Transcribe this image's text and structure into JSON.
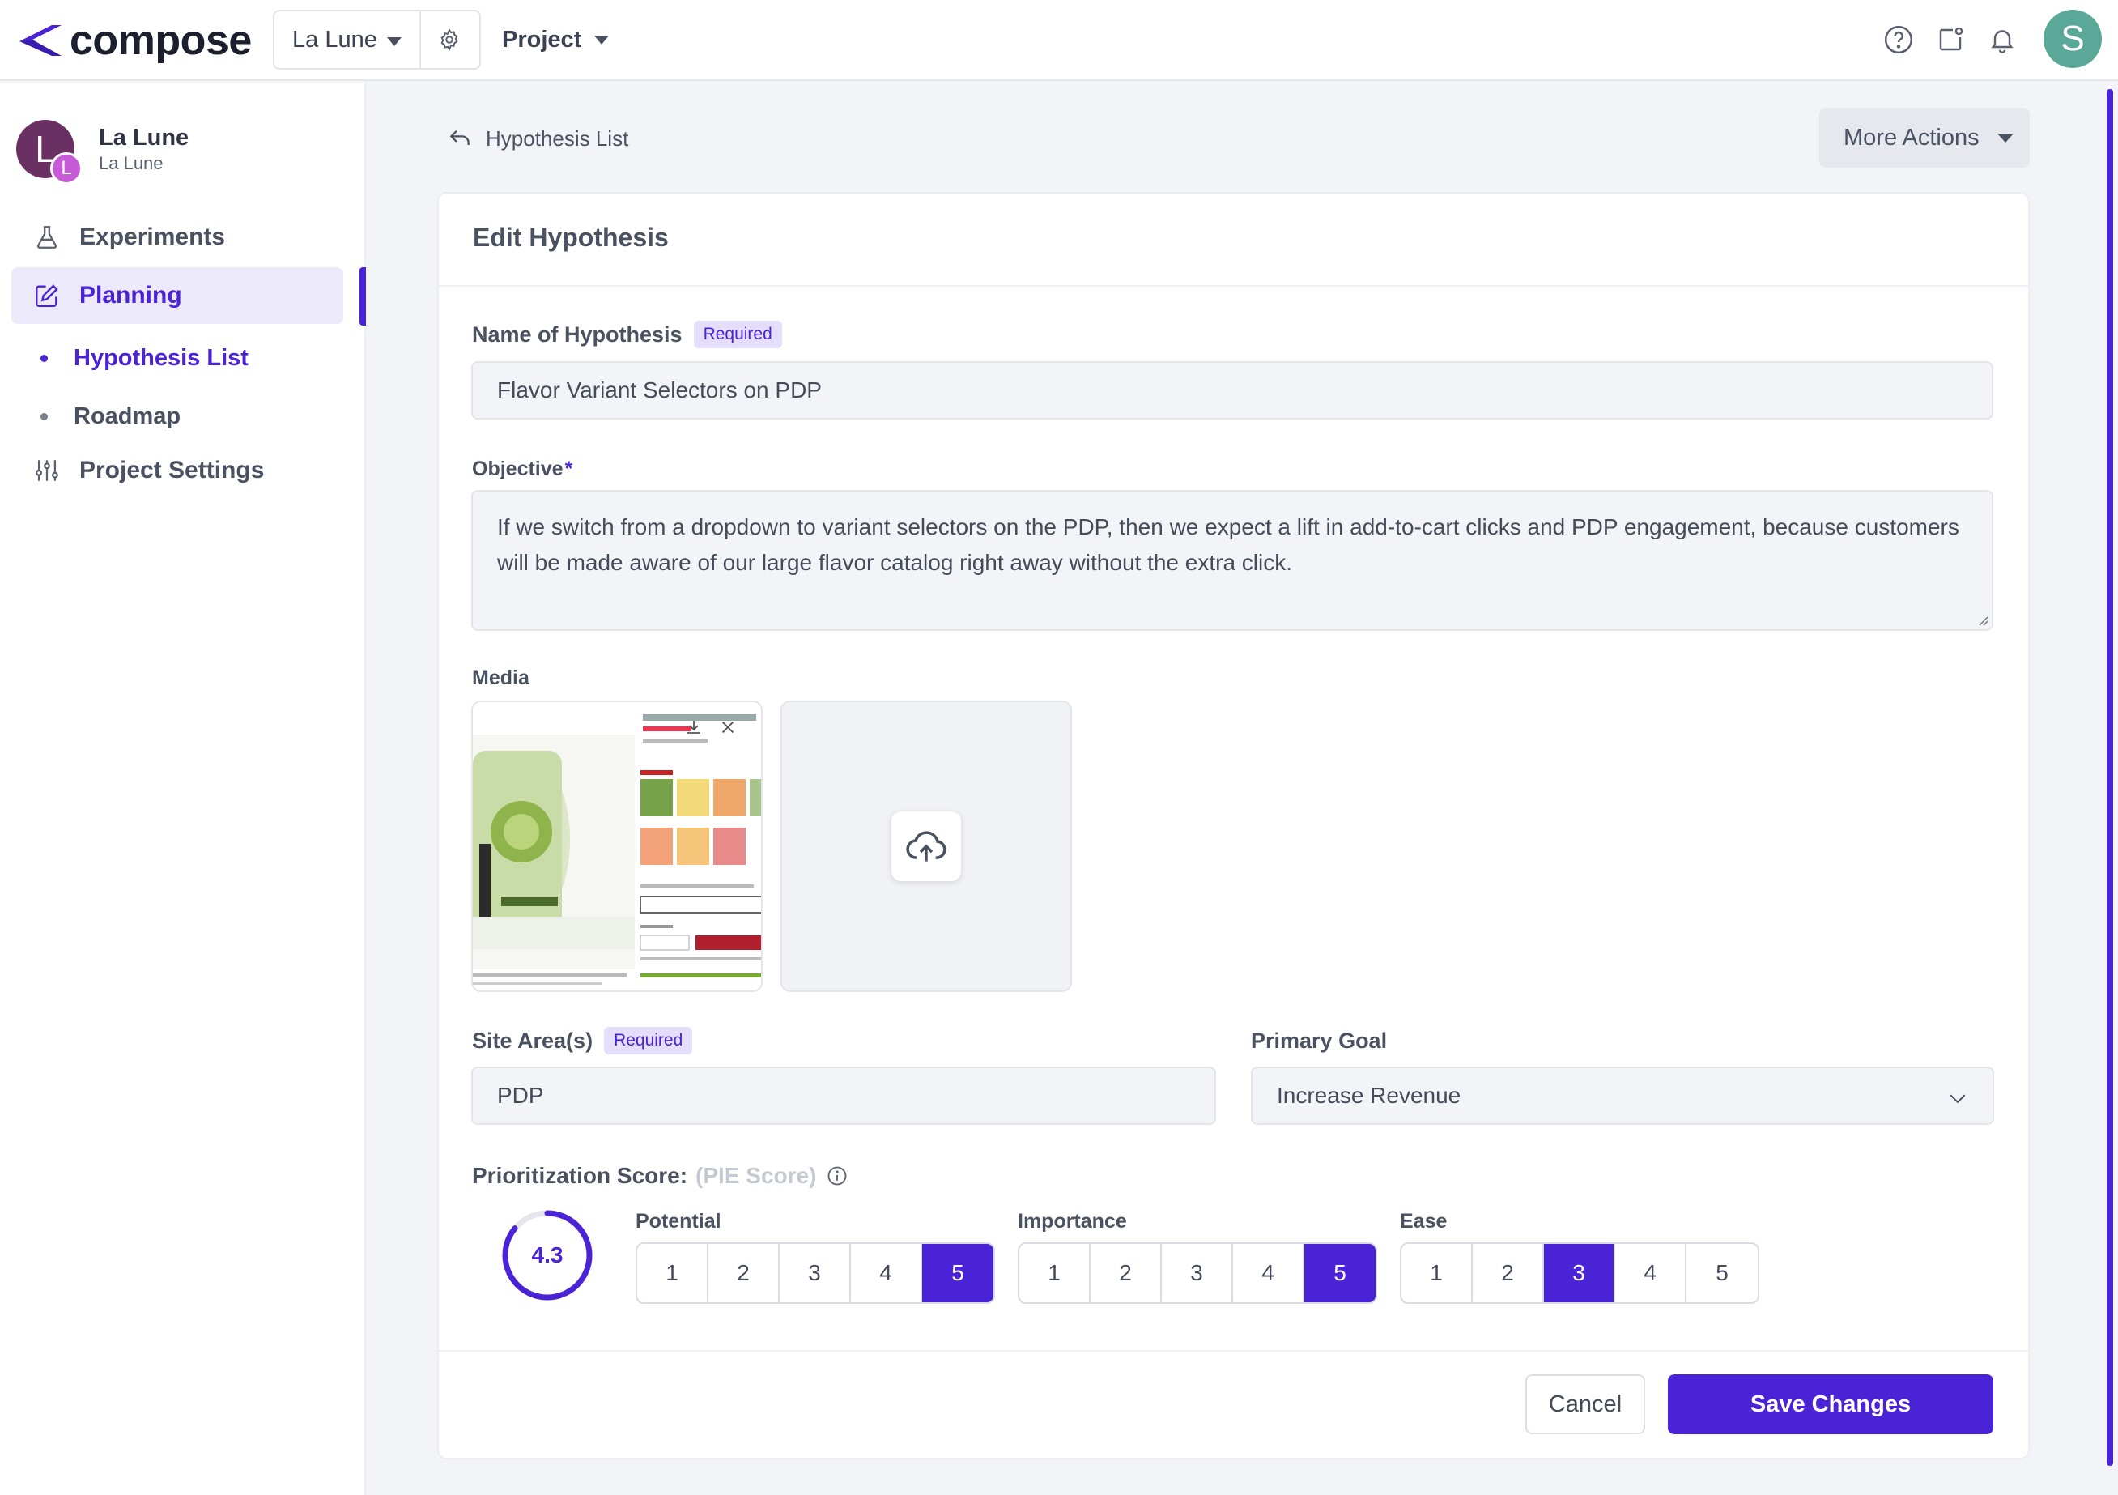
{
  "topbar": {
    "logo_text": "compose",
    "workspace": "La Lune",
    "project_menu": "Project",
    "user_initial": "S"
  },
  "sidebar": {
    "org_name": "La Lune",
    "org_sub": "La Lune",
    "org_initial": "L",
    "org_badge": "L",
    "items": [
      {
        "label": "Experiments",
        "icon": "flask-icon"
      },
      {
        "label": "Planning",
        "icon": "edit-icon"
      },
      {
        "label": "Project Settings",
        "icon": "sliders-icon"
      }
    ],
    "sub_items": [
      {
        "label": "Hypothesis List"
      },
      {
        "label": "Roadmap"
      }
    ]
  },
  "main": {
    "breadcrumb": "Hypothesis List",
    "more_actions": "More Actions",
    "card_title": "Edit Hypothesis",
    "name_label": "Name of Hypothesis",
    "required_badge": "Required",
    "name_value": "Flavor Variant Selectors on PDP",
    "objective_label": "Objective",
    "objective_star": "*",
    "objective_value": "If we switch from a dropdown to variant selectors on the PDP, then we expect a lift in add-to-cart clicks and PDP engagement, because customers will be made aware of our large flavor catalog right away without the extra click.",
    "media_label": "Media",
    "site_area_label": "Site Area(s)",
    "site_area_value": "PDP",
    "primary_goal_label": "Primary Goal",
    "primary_goal_value": "Increase Revenue",
    "score_label": "Prioritization Score:",
    "score_sub": "(PIE Score)",
    "score_value": "4.3",
    "score_fraction": 0.86,
    "ratings": [
      {
        "label": "Potential",
        "options": [
          "1",
          "2",
          "3",
          "4",
          "5"
        ],
        "selected": "5"
      },
      {
        "label": "Importance",
        "options": [
          "1",
          "2",
          "3",
          "4",
          "5"
        ],
        "selected": "5"
      },
      {
        "label": "Ease",
        "options": [
          "1",
          "2",
          "3",
          "4",
          "5"
        ],
        "selected": "3"
      }
    ],
    "cancel": "Cancel",
    "save": "Save Changes"
  },
  "colors": {
    "accent": "#4b23d6",
    "accent_light": "#ece9fb",
    "avatar_user": "#5aa897",
    "avatar_org": "#6a2f63"
  }
}
